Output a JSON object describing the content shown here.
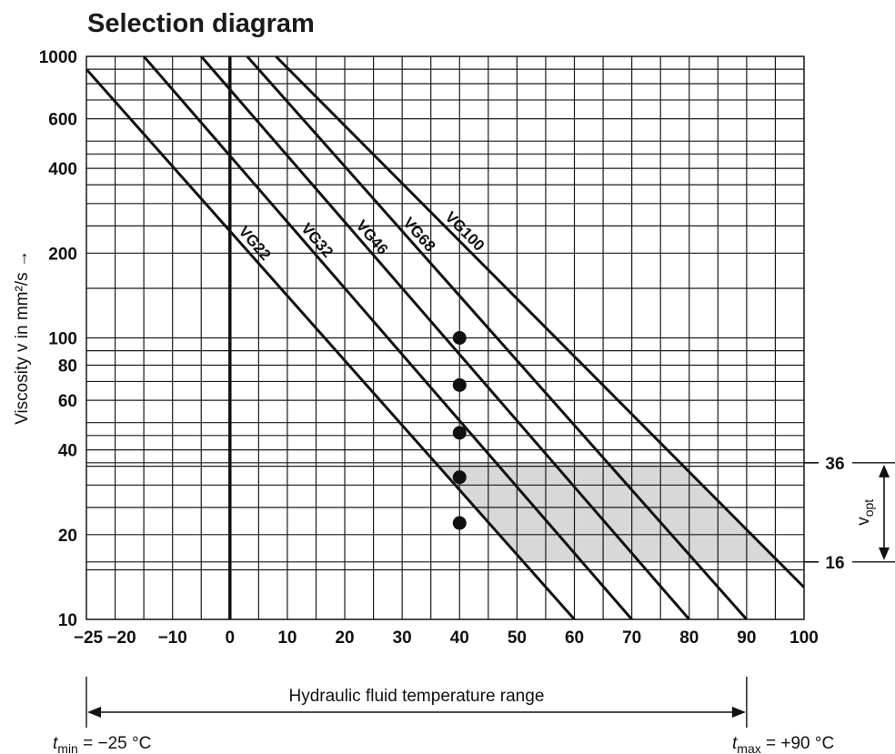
{
  "chart_data": {
    "type": "line",
    "title": "Selection diagram",
    "xlabel": "",
    "ylabel": "Viscosity v in mm²/s →",
    "x_scale": "linear",
    "y_scale": "log",
    "xlim": [
      -25,
      100
    ],
    "ylim": [
      10,
      1000
    ],
    "x_ticks": [
      "−25",
      "−20",
      "−10",
      "0",
      "10",
      "20",
      "30",
      "40",
      "50",
      "60",
      "70",
      "80",
      "90",
      "100"
    ],
    "y_ticks": [
      "1000",
      "600",
      "400",
      "200",
      "100",
      "80",
      "60",
      "40",
      "20",
      "10"
    ],
    "grid": true,
    "series": [
      {
        "name": "VG22",
        "x": [
          -25,
          60
        ],
        "y": [
          900,
          10
        ]
      },
      {
        "name": "VG32",
        "x": [
          -15,
          70
        ],
        "y": [
          1000,
          10
        ]
      },
      {
        "name": "VG46",
        "x": [
          -5,
          80
        ],
        "y": [
          1000,
          10
        ]
      },
      {
        "name": "VG68",
        "x": [
          3,
          90
        ],
        "y": [
          1000,
          10
        ]
      },
      {
        "name": "VG100",
        "x": [
          8,
          100
        ],
        "y": [
          1000,
          13
        ]
      }
    ],
    "points": [
      {
        "series": "VG100",
        "x": 40,
        "y": 100
      },
      {
        "series": "VG68",
        "x": 40,
        "y": 68
      },
      {
        "series": "VG46",
        "x": 40,
        "y": 46
      },
      {
        "series": "VG32",
        "x": 40,
        "y": 32
      },
      {
        "series": "VG22",
        "x": 40,
        "y": 22
      }
    ],
    "optimal_range": {
      "label": "v",
      "subscript": "opt",
      "low": 16,
      "high": 36,
      "low_label": "16",
      "high_label": "36"
    },
    "temperature_range": {
      "label": "Hydraulic fluid temperature range",
      "min": -25,
      "max": 90,
      "min_label": {
        "symbol": "t",
        "subscript": "min",
        "text": " = −25 °C"
      },
      "max_label": {
        "symbol": "t",
        "subscript": "max",
        "text": " = +90 °C"
      }
    },
    "colors": {
      "line": "#111111",
      "grid": "#1a1a1a",
      "shade": "#d8d8d8",
      "point": "#111111"
    }
  }
}
